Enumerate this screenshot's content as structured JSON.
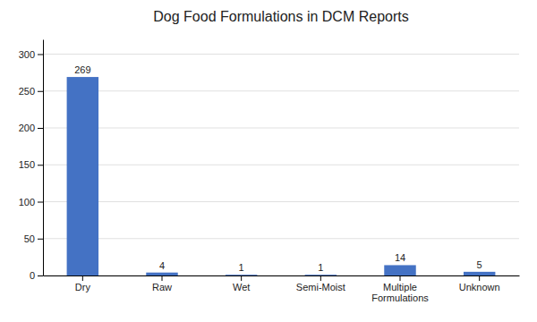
{
  "chart_data": {
    "type": "bar",
    "title": "Dog Food Formulations in DCM Reports",
    "categories": [
      "Dry",
      "Raw",
      "Wet",
      "Semi-Moist",
      "Multiple\nFormulations",
      "Unknown"
    ],
    "values": [
      269,
      4,
      1,
      1,
      14,
      5
    ],
    "color": "#4472C4",
    "ylim": [
      0,
      320
    ],
    "yticks": [
      0,
      50,
      100,
      150,
      200,
      250,
      300
    ],
    "grid": true,
    "data_labels": true
  }
}
